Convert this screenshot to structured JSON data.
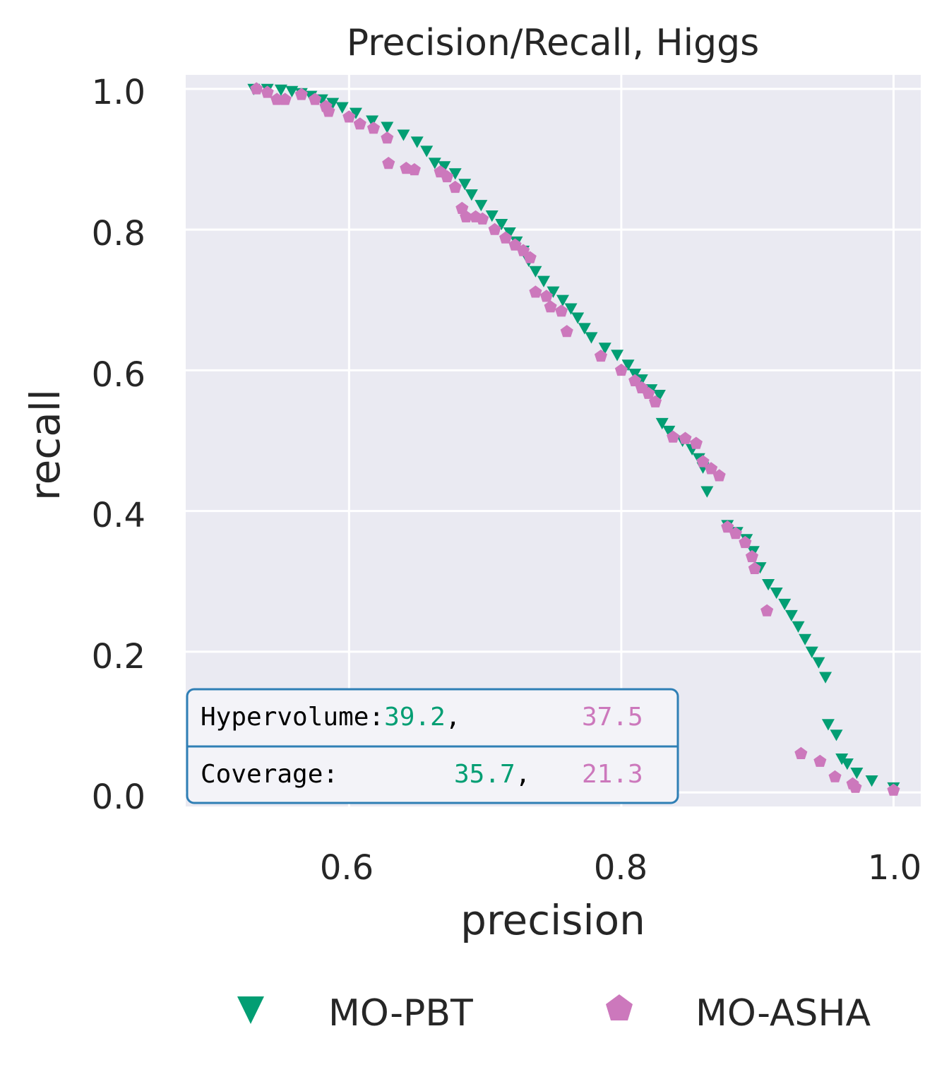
{
  "chart_data": {
    "type": "scatter",
    "title": "Precision/Recall, Higgs",
    "xlabel": "precision",
    "ylabel": "recall",
    "xlim": [
      0.48,
      1.02
    ],
    "ylim": [
      -0.02,
      1.02
    ],
    "xticks": [
      "0.6",
      "0.8",
      "1.0"
    ],
    "yticks": [
      "0.0",
      "0.2",
      "0.4",
      "0.6",
      "0.8",
      "1.0"
    ],
    "grid": true,
    "legend_position": "bottom",
    "series": [
      {
        "name": "MO-PBT",
        "marker": "triangle-down",
        "color": "#029e73",
        "points": [
          [
            0.53,
            1.0
          ],
          [
            0.54,
            1.0
          ],
          [
            0.55,
            0.999
          ],
          [
            0.558,
            0.997
          ],
          [
            0.565,
            0.994
          ],
          [
            0.572,
            0.99
          ],
          [
            0.58,
            0.985
          ],
          [
            0.588,
            0.98
          ],
          [
            0.595,
            0.974
          ],
          [
            0.605,
            0.966
          ],
          [
            0.617,
            0.955
          ],
          [
            0.628,
            0.946
          ],
          [
            0.64,
            0.935
          ],
          [
            0.65,
            0.925
          ],
          [
            0.657,
            0.912
          ],
          [
            0.663,
            0.895
          ],
          [
            0.67,
            0.89
          ],
          [
            0.678,
            0.88
          ],
          [
            0.685,
            0.865
          ],
          [
            0.69,
            0.85
          ],
          [
            0.697,
            0.835
          ],
          [
            0.705,
            0.82
          ],
          [
            0.712,
            0.808
          ],
          [
            0.718,
            0.796
          ],
          [
            0.723,
            0.783
          ],
          [
            0.728,
            0.77
          ],
          [
            0.732,
            0.756
          ],
          [
            0.737,
            0.741
          ],
          [
            0.743,
            0.727
          ],
          [
            0.75,
            0.712
          ],
          [
            0.757,
            0.7
          ],
          [
            0.763,
            0.688
          ],
          [
            0.768,
            0.675
          ],
          [
            0.773,
            0.66
          ],
          [
            0.778,
            0.647
          ],
          [
            0.788,
            0.632
          ],
          [
            0.797,
            0.622
          ],
          [
            0.805,
            0.608
          ],
          [
            0.81,
            0.595
          ],
          [
            0.815,
            0.587
          ],
          [
            0.822,
            0.573
          ],
          [
            0.828,
            0.565
          ],
          [
            0.83,
            0.525
          ],
          [
            0.835,
            0.514
          ],
          [
            0.845,
            0.5
          ],
          [
            0.852,
            0.488
          ],
          [
            0.857,
            0.475
          ],
          [
            0.86,
            0.462
          ],
          [
            0.863,
            0.428
          ],
          [
            0.878,
            0.38
          ],
          [
            0.885,
            0.37
          ],
          [
            0.892,
            0.36
          ],
          [
            0.897,
            0.343
          ],
          [
            0.902,
            0.32
          ],
          [
            0.908,
            0.296
          ],
          [
            0.914,
            0.284
          ],
          [
            0.92,
            0.268
          ],
          [
            0.925,
            0.252
          ],
          [
            0.93,
            0.236
          ],
          [
            0.935,
            0.218
          ],
          [
            0.94,
            0.2
          ],
          [
            0.945,
            0.185
          ],
          [
            0.95,
            0.164
          ],
          [
            0.952,
            0.097
          ],
          [
            0.958,
            0.082
          ],
          [
            0.962,
            0.048
          ],
          [
            0.966,
            0.041
          ],
          [
            0.973,
            0.028
          ],
          [
            0.984,
            0.017
          ],
          [
            1.0,
            0.007
          ]
        ]
      },
      {
        "name": "MO-ASHA",
        "marker": "pentagon",
        "color": "#cc78bc",
        "points": [
          [
            0.532,
            1.0
          ],
          [
            0.54,
            0.995
          ],
          [
            0.547,
            0.985
          ],
          [
            0.553,
            0.985
          ],
          [
            0.565,
            0.992
          ],
          [
            0.575,
            0.985
          ],
          [
            0.583,
            0.975
          ],
          [
            0.585,
            0.968
          ],
          [
            0.6,
            0.96
          ],
          [
            0.608,
            0.95
          ],
          [
            0.618,
            0.944
          ],
          [
            0.628,
            0.93
          ],
          [
            0.629,
            0.894
          ],
          [
            0.642,
            0.887
          ],
          [
            0.648,
            0.885
          ],
          [
            0.667,
            0.882
          ],
          [
            0.672,
            0.875
          ],
          [
            0.678,
            0.86
          ],
          [
            0.683,
            0.83
          ],
          [
            0.686,
            0.818
          ],
          [
            0.693,
            0.818
          ],
          [
            0.698,
            0.815
          ],
          [
            0.707,
            0.8
          ],
          [
            0.715,
            0.788
          ],
          [
            0.722,
            0.778
          ],
          [
            0.728,
            0.77
          ],
          [
            0.733,
            0.76
          ],
          [
            0.737,
            0.711
          ],
          [
            0.745,
            0.705
          ],
          [
            0.748,
            0.69
          ],
          [
            0.756,
            0.684
          ],
          [
            0.76,
            0.655
          ],
          [
            0.785,
            0.62
          ],
          [
            0.8,
            0.6
          ],
          [
            0.81,
            0.585
          ],
          [
            0.815,
            0.575
          ],
          [
            0.82,
            0.567
          ],
          [
            0.825,
            0.555
          ],
          [
            0.838,
            0.505
          ],
          [
            0.847,
            0.503
          ],
          [
            0.855,
            0.496
          ],
          [
            0.86,
            0.47
          ],
          [
            0.866,
            0.46
          ],
          [
            0.872,
            0.45
          ],
          [
            0.878,
            0.377
          ],
          [
            0.884,
            0.368
          ],
          [
            0.891,
            0.355
          ],
          [
            0.896,
            0.335
          ],
          [
            0.898,
            0.318
          ],
          [
            0.907,
            0.258
          ],
          [
            0.932,
            0.055
          ],
          [
            0.946,
            0.044
          ],
          [
            0.957,
            0.022
          ],
          [
            0.97,
            0.012
          ],
          [
            0.972,
            0.007
          ],
          [
            1.0,
            0.003
          ]
        ]
      }
    ]
  },
  "annotation": {
    "hypervolume_label": "Hypervolume:",
    "hypervolume_pbt": "39.2",
    "hypervolume_sep": ",",
    "hypervolume_asha": "37.5",
    "coverage_label": "Coverage:",
    "coverage_pbt": "35.7",
    "coverage_sep": ",",
    "coverage_asha": "21.3"
  }
}
